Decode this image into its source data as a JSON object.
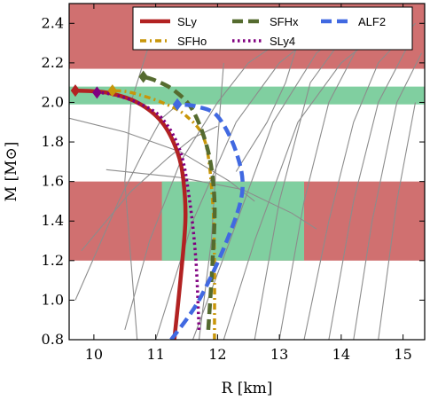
{
  "chart_data": {
    "type": "line",
    "xlabel": "R [km]",
    "ylabel": "M [M⊙]",
    "xlim": [
      9.6,
      15.35
    ],
    "ylim": [
      0.8,
      2.5
    ],
    "x_ticks": [
      "10",
      "11",
      "12",
      "13",
      "14",
      "15"
    ],
    "y_ticks": [
      "0.8",
      "1.0",
      "1.2",
      "1.4",
      "1.6",
      "1.8",
      "2.0",
      "2.2",
      "2.4"
    ],
    "grid": false,
    "legend_position": "top-right",
    "colors": {
      "red_band": "#d07070",
      "green_band": "#80cfa0",
      "background_curve": "#8c8c8c"
    },
    "bands": [
      {
        "color": "red",
        "x": [
          9.6,
          15.35
        ],
        "y": [
          2.17,
          2.5
        ]
      },
      {
        "color": "green",
        "x": [
          9.6,
          15.35
        ],
        "y": [
          1.99,
          2.08
        ]
      },
      {
        "color": "red",
        "x": [
          9.6,
          15.35
        ],
        "y": [
          1.2,
          1.6
        ]
      },
      {
        "color": "green",
        "x": [
          11.1,
          13.4
        ],
        "y": [
          1.2,
          1.6
        ]
      }
    ],
    "series": [
      {
        "name": "SLy",
        "color": "#b22222",
        "style": "solid",
        "points": [
          [
            11.3,
            0.8
          ],
          [
            11.4,
            1.1
          ],
          [
            11.48,
            1.4
          ],
          [
            11.45,
            1.6
          ],
          [
            11.35,
            1.75
          ],
          [
            11.1,
            1.9
          ],
          [
            10.7,
            2.0
          ],
          [
            10.2,
            2.05
          ],
          [
            9.7,
            2.06
          ]
        ]
      },
      {
        "name": "SFHo",
        "color": "#c8960a",
        "style": "dashdot",
        "points": [
          [
            11.95,
            0.8
          ],
          [
            11.95,
            1.2
          ],
          [
            11.92,
            1.5
          ],
          [
            11.8,
            1.8
          ],
          [
            11.5,
            1.93
          ],
          [
            11.1,
            2.0
          ],
          [
            10.6,
            2.05
          ],
          [
            10.3,
            2.06
          ]
        ]
      },
      {
        "name": "SFHx",
        "color": "#556b2f",
        "style": "dashed",
        "points": [
          [
            11.85,
            0.85
          ],
          [
            11.92,
            1.2
          ],
          [
            11.95,
            1.5
          ],
          [
            11.85,
            1.75
          ],
          [
            11.6,
            1.96
          ],
          [
            11.3,
            2.06
          ],
          [
            11.0,
            2.11
          ],
          [
            10.8,
            2.13
          ]
        ]
      },
      {
        "name": "SLy4",
        "color": "#800080",
        "style": "dotted",
        "points": [
          [
            11.7,
            0.85
          ],
          [
            11.65,
            1.2
          ],
          [
            11.55,
            1.5
          ],
          [
            11.4,
            1.75
          ],
          [
            11.1,
            1.92
          ],
          [
            10.7,
            2.0
          ],
          [
            10.3,
            2.04
          ],
          [
            10.05,
            2.05
          ]
        ]
      },
      {
        "name": "ALF2",
        "color": "#4169e1",
        "style": "dashed",
        "points": [
          [
            11.25,
            0.8
          ],
          [
            11.7,
            1.0
          ],
          [
            12.15,
            1.3
          ],
          [
            12.4,
            1.55
          ],
          [
            12.3,
            1.75
          ],
          [
            12.0,
            1.93
          ],
          [
            11.65,
            1.98
          ],
          [
            11.35,
            1.99
          ]
        ]
      }
    ],
    "legend": [
      {
        "name": "SLy"
      },
      {
        "name": "SFHo"
      },
      {
        "name": "SFHx"
      },
      {
        "name": "SLy4"
      },
      {
        "name": "ALF2"
      }
    ]
  }
}
